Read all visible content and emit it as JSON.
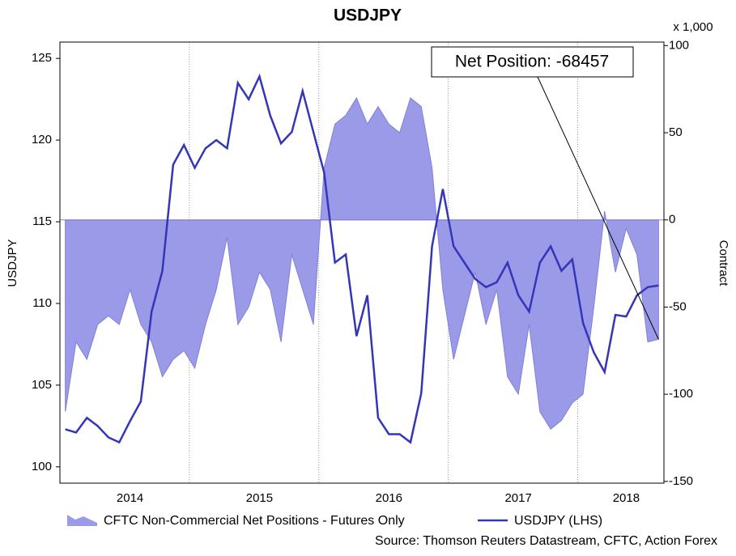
{
  "chart_data": {
    "type": "area-line",
    "title": "USDJPY",
    "y_label": "USDJPY",
    "y2_label": "Contract",
    "y2_unit": "x 1,000",
    "annotation": "Net Position: -68457",
    "source": "Source: Thomson Reuters Datastream, CFTC, Action Forex",
    "categories": [
      null,
      null,
      null,
      null,
      null,
      null,
      "2014",
      null,
      null,
      null,
      null,
      null,
      null,
      null,
      null,
      null,
      null,
      null,
      "2015",
      null,
      null,
      null,
      null,
      null,
      null,
      null,
      null,
      null,
      null,
      null,
      "2016",
      null,
      null,
      null,
      null,
      null,
      null,
      null,
      null,
      null,
      null,
      null,
      "2017",
      null,
      null,
      null,
      null,
      null,
      null,
      null,
      null,
      null,
      "2018",
      null,
      null,
      null
    ],
    "series": [
      {
        "name": "CFTC Non-Commercial Net Positions - Futures Only",
        "type": "area",
        "axis": "y2",
        "color": "#9a9ae8",
        "values": [
          -110,
          -70,
          -80,
          -60,
          -55,
          -60,
          -40,
          -60,
          -70,
          -90,
          -80,
          -75,
          -85,
          -60,
          -40,
          -10,
          -60,
          -50,
          -30,
          -40,
          -70,
          -20,
          -40,
          -60,
          30,
          55,
          60,
          70,
          55,
          65,
          55,
          50,
          70,
          65,
          30,
          -40,
          -80,
          -55,
          -30,
          -60,
          -40,
          -90,
          -100,
          -60,
          -110,
          -120,
          -115,
          -105,
          -100,
          -50,
          5,
          -30,
          -5,
          -20,
          -70,
          -68.457
        ]
      },
      {
        "name": "USDJPY (LHS)",
        "type": "line",
        "axis": "y",
        "color": "#3535b8",
        "values": [
          102.3,
          102.1,
          103,
          102.5,
          101.8,
          101.5,
          102.8,
          104,
          109.5,
          112,
          118.5,
          119.7,
          118.3,
          119.5,
          120,
          119.5,
          123.5,
          122.5,
          123.9,
          121.5,
          119.8,
          120.5,
          123,
          120.5,
          118,
          112.5,
          113,
          108,
          110.5,
          103,
          102,
          102,
          101.5,
          104.5,
          113.5,
          117,
          113.5,
          112.5,
          111.5,
          111,
          111.3,
          112.5,
          110.5,
          109.5,
          112.5,
          113.5,
          112,
          112.7,
          108.8,
          107,
          105.8,
          109.3,
          109.2,
          110.5,
          111,
          111.1
        ]
      }
    ],
    "ylim": [
      99,
      126
    ],
    "yticks": [
      100,
      105,
      110,
      115,
      120,
      125
    ],
    "y2lim": [
      -151,
      102
    ],
    "y2ticks": [
      -150,
      -100,
      -50,
      0,
      50,
      100
    ],
    "grid": false
  }
}
